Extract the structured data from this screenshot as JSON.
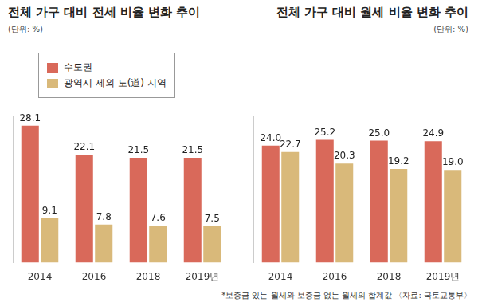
{
  "chart_data": [
    {
      "type": "bar",
      "title": "전체 가구 대비 전세 비율 변화 추이",
      "subtitle": "(단위: %)",
      "categories": [
        "2014",
        "2016",
        "2018",
        "2019년"
      ],
      "series": [
        {
          "name": "수도권",
          "color": "#d9695a",
          "values": [
            28.1,
            22.1,
            21.5,
            21.5
          ],
          "value_labels": [
            "28.1",
            "22.1",
            "21.5",
            "21.5"
          ]
        },
        {
          "name": "광역시 제외 도(道) 지역",
          "color": "#d9b97a",
          "values": [
            9.1,
            7.8,
            7.6,
            7.5
          ],
          "value_labels": [
            "9.1",
            "7.8",
            "7.6",
            "7.5"
          ]
        }
      ],
      "ylim": [
        0,
        30
      ],
      "legend": "upper left",
      "data_labels": true,
      "tick_labels": "x",
      "grid": false
    },
    {
      "type": "bar",
      "title": "전체 가구 대비 월세 비율 변화 추이",
      "subtitle": "(단위: %)",
      "categories": [
        "2014",
        "2016",
        "2018",
        "2019년"
      ],
      "series": [
        {
          "name": "수도권",
          "color": "#d9695a",
          "values": [
            24.0,
            25.2,
            25.0,
            24.9
          ],
          "value_labels": [
            "24.0",
            "25.2",
            "25.0",
            "24.9"
          ]
        },
        {
          "name": "광역시 제외 도(道) 지역",
          "color": "#d9b97a",
          "values": [
            22.7,
            20.3,
            19.2,
            19.0
          ],
          "value_labels": [
            "22.7",
            "20.3",
            "19.2",
            "19.0"
          ]
        }
      ],
      "ylim": [
        0,
        30
      ],
      "data_labels": true,
      "tick_labels": "x",
      "grid": false,
      "annotations": [
        "*보증금 있는 월세와 보증금 없는 월세의 합계값 〈자료: 국토교통부〉"
      ]
    }
  ]
}
